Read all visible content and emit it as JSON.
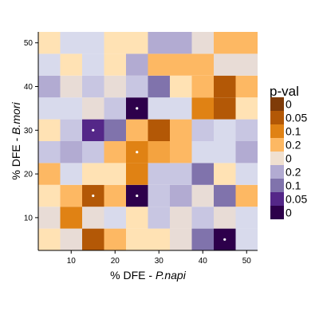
{
  "chart_data": {
    "type": "heatmap",
    "title": "",
    "x_axis": {
      "label_prefix": "% DFE - ",
      "label_species": "P.napi",
      "ticks": [
        10,
        20,
        30,
        40,
        50
      ],
      "range": [
        2.5,
        52.5
      ]
    },
    "y_axis": {
      "label_prefix": "% DFE - ",
      "label_species": "B.mori",
      "ticks": [
        10,
        20,
        30,
        40,
        50
      ],
      "range": [
        2.5,
        52.5
      ]
    },
    "x_centers": [
      5,
      10,
      15,
      20,
      25,
      30,
      35,
      40,
      45,
      50
    ],
    "y_centers": [
      5,
      10,
      15,
      20,
      25,
      30,
      35,
      40,
      45,
      50
    ],
    "grid": false,
    "legend": {
      "title": "p-val",
      "position": "right",
      "entries": [
        {
          "label": "0",
          "color": "#7f3b08"
        },
        {
          "label": "0.05",
          "color": "#b35806"
        },
        {
          "label": "0.1",
          "color": "#e08214"
        },
        {
          "label": "0.2",
          "color": "#fdb863"
        },
        {
          "label": "0",
          "color": "#f0e0d0"
        },
        {
          "label": "0.2",
          "color": "#b2abd2"
        },
        {
          "label": "0.1",
          "color": "#8073ac"
        },
        {
          "label": "0.05",
          "color": "#542788"
        },
        {
          "label": "0",
          "color": "#2d004b"
        }
      ]
    },
    "color_scale": {
      "0": "#ffe2b4",
      "1": "#fdb863",
      "2": "#f4a340",
      "3": "#e08214",
      "4": "#b35806",
      "5": "#e8dcd6",
      "6": "#d8daec",
      "7": "#c8c6e2",
      "8": "#b2abd2",
      "9": "#8073ac",
      "10": "#542788",
      "11": "#2d004b"
    },
    "cells": [
      [
        0,
        5,
        4,
        1,
        0,
        0,
        5,
        9,
        11,
        6
      ],
      [
        5,
        3,
        5,
        6,
        0,
        7,
        5,
        7,
        5,
        6
      ],
      [
        0,
        1,
        4,
        1,
        11,
        7,
        8,
        5,
        9,
        1
      ],
      [
        1,
        6,
        0,
        0,
        3,
        7,
        7,
        9,
        0,
        6
      ],
      [
        7,
        8,
        7,
        1,
        3,
        2,
        1,
        6,
        6,
        8
      ],
      [
        0,
        7,
        10,
        9,
        1,
        4,
        1,
        7,
        6,
        7
      ],
      [
        6,
        6,
        5,
        7,
        11,
        6,
        6,
        3,
        4,
        0
      ],
      [
        8,
        5,
        7,
        5,
        7,
        9,
        0,
        1,
        4,
        1
      ],
      [
        6,
        0,
        6,
        0,
        8,
        1,
        1,
        1,
        5,
        5
      ],
      [
        0,
        6,
        6,
        0,
        0,
        8,
        8,
        5,
        1,
        1
      ]
    ],
    "markers": [
      {
        "x": 15,
        "y": 15
      },
      {
        "x": 25,
        "y": 15
      },
      {
        "x": 45,
        "y": 5
      },
      {
        "x": 15,
        "y": 30
      },
      {
        "x": 25,
        "y": 25
      },
      {
        "x": 25,
        "y": 35
      }
    ]
  }
}
